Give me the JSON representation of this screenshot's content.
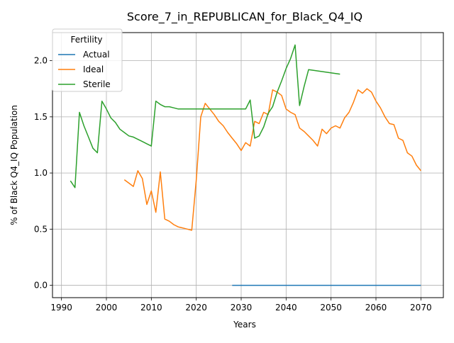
{
  "chart_data": {
    "type": "line",
    "title": "Score_7_in_REPUBLICAN_for_Black_Q4_IQ",
    "xlabel": "Years",
    "ylabel": "% of Black Q4_IQ Population",
    "xlim": [
      1988,
      2075
    ],
    "ylim": [
      -0.11,
      2.25
    ],
    "x_ticks": [
      1990,
      2000,
      2010,
      2020,
      2030,
      2040,
      2050,
      2060,
      2070
    ],
    "y_ticks": [
      "0.0",
      "0.5",
      "1.0",
      "1.5",
      "2.0"
    ],
    "y_tick_values": [
      0.0,
      0.5,
      1.0,
      1.5,
      2.0
    ],
    "grid": true,
    "legend": {
      "title": "Fertility",
      "placement": "top-left"
    },
    "series": [
      {
        "name": "Actual",
        "color": "#1f77b4",
        "points": [
          [
            2028,
            0.0
          ],
          [
            2070,
            0.0
          ]
        ]
      },
      {
        "name": "Ideal",
        "color": "#ff7f0e",
        "points": [
          [
            2004,
            0.94
          ],
          [
            2005,
            0.91
          ],
          [
            2006,
            0.88
          ],
          [
            2007,
            1.02
          ],
          [
            2008,
            0.95
          ],
          [
            2009,
            0.72
          ],
          [
            2010,
            0.84
          ],
          [
            2011,
            0.65
          ],
          [
            2012,
            1.01
          ],
          [
            2013,
            0.59
          ],
          [
            2014,
            0.57
          ],
          [
            2015,
            0.54
          ],
          [
            2016,
            0.52
          ],
          [
            2017,
            0.51
          ],
          [
            2018,
            0.5
          ],
          [
            2019,
            0.49
          ],
          [
            2020,
            0.94
          ],
          [
            2021,
            1.5
          ],
          [
            2022,
            1.62
          ],
          [
            2023,
            1.57
          ],
          [
            2024,
            1.52
          ],
          [
            2025,
            1.46
          ],
          [
            2026,
            1.42
          ],
          [
            2027,
            1.36
          ],
          [
            2028,
            1.31
          ],
          [
            2029,
            1.26
          ],
          [
            2030,
            1.2
          ],
          [
            2031,
            1.27
          ],
          [
            2032,
            1.24
          ],
          [
            2033,
            1.46
          ],
          [
            2034,
            1.44
          ],
          [
            2035,
            1.54
          ],
          [
            2036,
            1.52
          ],
          [
            2037,
            1.74
          ],
          [
            2038,
            1.72
          ],
          [
            2039,
            1.69
          ],
          [
            2040,
            1.57
          ],
          [
            2041,
            1.54
          ],
          [
            2042,
            1.52
          ],
          [
            2043,
            1.4
          ],
          [
            2044,
            1.37
          ],
          [
            2045,
            1.33
          ],
          [
            2046,
            1.29
          ],
          [
            2047,
            1.24
          ],
          [
            2048,
            1.39
          ],
          [
            2049,
            1.35
          ],
          [
            2050,
            1.4
          ],
          [
            2051,
            1.42
          ],
          [
            2052,
            1.4
          ],
          [
            2053,
            1.49
          ],
          [
            2054,
            1.54
          ],
          [
            2055,
            1.63
          ],
          [
            2056,
            1.74
          ],
          [
            2057,
            1.71
          ],
          [
            2058,
            1.75
          ],
          [
            2059,
            1.72
          ],
          [
            2060,
            1.64
          ],
          [
            2061,
            1.58
          ],
          [
            2062,
            1.5
          ],
          [
            2063,
            1.44
          ],
          [
            2064,
            1.43
          ],
          [
            2065,
            1.31
          ],
          [
            2066,
            1.29
          ],
          [
            2067,
            1.18
          ],
          [
            2068,
            1.15
          ],
          [
            2069,
            1.07
          ],
          [
            2070,
            1.02
          ]
        ]
      },
      {
        "name": "Sterile",
        "color": "#2ca02c",
        "points": [
          [
            1992,
            0.93
          ],
          [
            1993,
            0.87
          ],
          [
            1994,
            1.54
          ],
          [
            1995,
            1.42
          ],
          [
            1996,
            1.32
          ],
          [
            1997,
            1.22
          ],
          [
            1998,
            1.18
          ],
          [
            1999,
            1.64
          ],
          [
            2000,
            1.57
          ],
          [
            2001,
            1.49
          ],
          [
            2002,
            1.45
          ],
          [
            2003,
            1.39
          ],
          [
            2004,
            1.36
          ],
          [
            2005,
            1.33
          ],
          [
            2006,
            1.32
          ],
          [
            2007,
            1.3
          ],
          [
            2008,
            1.28
          ],
          [
            2009,
            1.26
          ],
          [
            2010,
            1.24
          ],
          [
            2011,
            1.64
          ],
          [
            2012,
            1.61
          ],
          [
            2013,
            1.59
          ],
          [
            2014,
            1.59
          ],
          [
            2015,
            1.58
          ],
          [
            2016,
            1.57
          ],
          [
            2017,
            1.57
          ],
          [
            2018,
            1.57
          ],
          [
            2019,
            1.57
          ],
          [
            2020,
            1.57
          ],
          [
            2021,
            1.57
          ],
          [
            2022,
            1.57
          ],
          [
            2023,
            1.57
          ],
          [
            2024,
            1.57
          ],
          [
            2025,
            1.57
          ],
          [
            2026,
            1.57
          ],
          [
            2027,
            1.57
          ],
          [
            2028,
            1.57
          ],
          [
            2029,
            1.57
          ],
          [
            2030,
            1.57
          ],
          [
            2031,
            1.57
          ],
          [
            2032,
            1.65
          ],
          [
            2033,
            1.31
          ],
          [
            2034,
            1.33
          ],
          [
            2035,
            1.41
          ],
          [
            2036,
            1.53
          ],
          [
            2037,
            1.59
          ],
          [
            2038,
            1.72
          ],
          [
            2039,
            1.82
          ],
          [
            2040,
            1.93
          ],
          [
            2041,
            2.02
          ],
          [
            2042,
            2.14
          ],
          [
            2043,
            1.6
          ],
          [
            2044,
            1.77
          ],
          [
            2045,
            1.92
          ],
          [
            2052,
            1.88
          ]
        ]
      }
    ]
  }
}
